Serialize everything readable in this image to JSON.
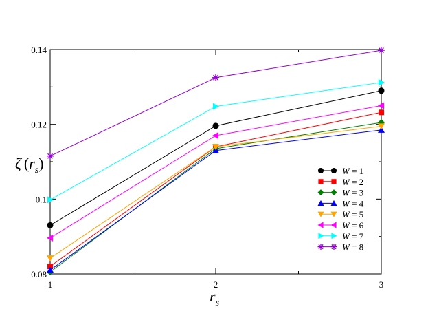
{
  "chart_data": {
    "type": "line",
    "title": "",
    "xlabel": "r_s",
    "ylabel": "ζ (r_s)",
    "x": [
      1,
      2,
      3
    ],
    "xlim": [
      1,
      3
    ],
    "ylim": [
      0.08,
      0.14
    ],
    "xticks": [
      "1",
      "2",
      "3"
    ],
    "yticks": [
      "0.08",
      "0.1",
      "0.12",
      "0.14"
    ],
    "grid": false,
    "legend_position": "center-right",
    "series": [
      {
        "name": "W = 1",
        "values": [
          0.093,
          0.1196,
          0.129
        ],
        "color": "#000000",
        "marker": "circle"
      },
      {
        "name": "W = 2",
        "values": [
          0.082,
          0.114,
          0.1232
        ],
        "color": "#ff0000",
        "marker": "square"
      },
      {
        "name": "W = 3",
        "values": [
          0.0805,
          0.1135,
          0.1205
        ],
        "color": "#008000",
        "marker": "diamond"
      },
      {
        "name": "W = 4",
        "values": [
          0.081,
          0.113,
          0.1185
        ],
        "color": "#0000ff",
        "marker": "triangle-up"
      },
      {
        "name": "W = 5",
        "values": [
          0.0842,
          0.114,
          0.1195
        ],
        "color": "#ffa500",
        "marker": "triangle-down"
      },
      {
        "name": "W = 6",
        "values": [
          0.0896,
          0.117,
          0.125
        ],
        "color": "#ff00ff",
        "marker": "triangle-left"
      },
      {
        "name": "W = 7",
        "values": [
          0.0998,
          0.1248,
          0.1312
        ],
        "color": "#00ffff",
        "marker": "triangle-right"
      },
      {
        "name": "W = 8",
        "values": [
          0.1115,
          0.1325,
          0.1398
        ],
        "color": "#9400d3",
        "marker": "star"
      }
    ]
  }
}
